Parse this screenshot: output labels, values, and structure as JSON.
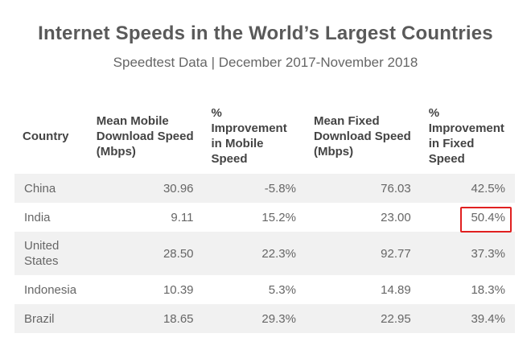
{
  "title": "Internet Speeds in the World’s Largest Countries",
  "subtitle": "Speedtest Data | December 2017-November 2018",
  "chart_data": {
    "type": "table",
    "columns": [
      "Country",
      "Mean Mobile Download Speed (Mbps)",
      "% Improvement in Mobile Speed",
      "Mean Fixed Download Speed (Mbps)",
      "% Improvement in Fixed Speed"
    ],
    "rows": [
      [
        "China",
        "30.96",
        "-5.8%",
        "76.03",
        "42.5%"
      ],
      [
        "India",
        "9.11",
        "15.2%",
        "23.00",
        "50.4%"
      ],
      [
        "United States",
        "28.50",
        "22.3%",
        "92.77",
        "37.3%"
      ],
      [
        "Indonesia",
        "10.39",
        "5.3%",
        "14.89",
        "18.3%"
      ],
      [
        "Brazil",
        "18.65",
        "29.3%",
        "22.95",
        "39.4%"
      ]
    ],
    "highlight": {
      "row": "India",
      "column": "% Improvement in Fixed Speed",
      "color": "#e02020"
    }
  }
}
